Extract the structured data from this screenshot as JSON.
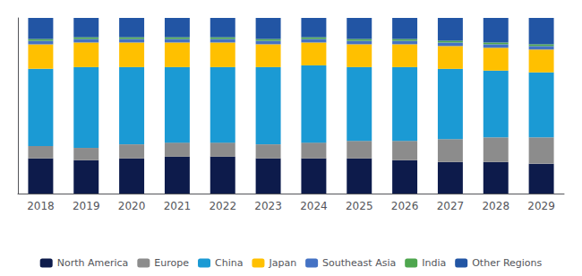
{
  "chart_data": {
    "type": "bar",
    "stacked": true,
    "categories": [
      "2018",
      "2019",
      "2020",
      "2021",
      "2022",
      "2023",
      "2024",
      "2025",
      "2026",
      "2027",
      "2028",
      "2029"
    ],
    "series": [
      {
        "name": "North America",
        "color": "#0d1b4b",
        "values": [
          0.2,
          0.19,
          0.2,
          0.21,
          0.21,
          0.2,
          0.2,
          0.2,
          0.19,
          0.18,
          0.18,
          0.17
        ]
      },
      {
        "name": "Europe",
        "color": "#8c8c8c",
        "values": [
          0.07,
          0.07,
          0.08,
          0.08,
          0.08,
          0.08,
          0.09,
          0.1,
          0.11,
          0.13,
          0.14,
          0.15
        ]
      },
      {
        "name": "China",
        "color": "#1b9ad4",
        "values": [
          0.44,
          0.46,
          0.44,
          0.43,
          0.43,
          0.44,
          0.44,
          0.42,
          0.42,
          0.4,
          0.38,
          0.37
        ]
      },
      {
        "name": "Japan",
        "color": "#ffc000",
        "values": [
          0.14,
          0.14,
          0.14,
          0.14,
          0.14,
          0.13,
          0.13,
          0.13,
          0.13,
          0.13,
          0.13,
          0.13
        ]
      },
      {
        "name": "Southeast Asia",
        "color": "#4472c4",
        "values": [
          0.02,
          0.02,
          0.02,
          0.02,
          0.02,
          0.02,
          0.02,
          0.02,
          0.02,
          0.02,
          0.02,
          0.02
        ]
      },
      {
        "name": "India",
        "color": "#4ea64e",
        "values": [
          0.01,
          0.01,
          0.01,
          0.01,
          0.01,
          0.01,
          0.01,
          0.01,
          0.01,
          0.01,
          0.01,
          0.01
        ]
      },
      {
        "name": "Other Regions",
        "color": "#2255a4",
        "values": [
          0.12,
          0.11,
          0.11,
          0.11,
          0.11,
          0.12,
          0.11,
          0.12,
          0.12,
          0.13,
          0.14,
          0.15
        ]
      }
    ],
    "ylim": [
      0,
      1.0
    ],
    "yticks": [],
    "grid": false,
    "legend": "bottom",
    "tick_labels": "x"
  }
}
